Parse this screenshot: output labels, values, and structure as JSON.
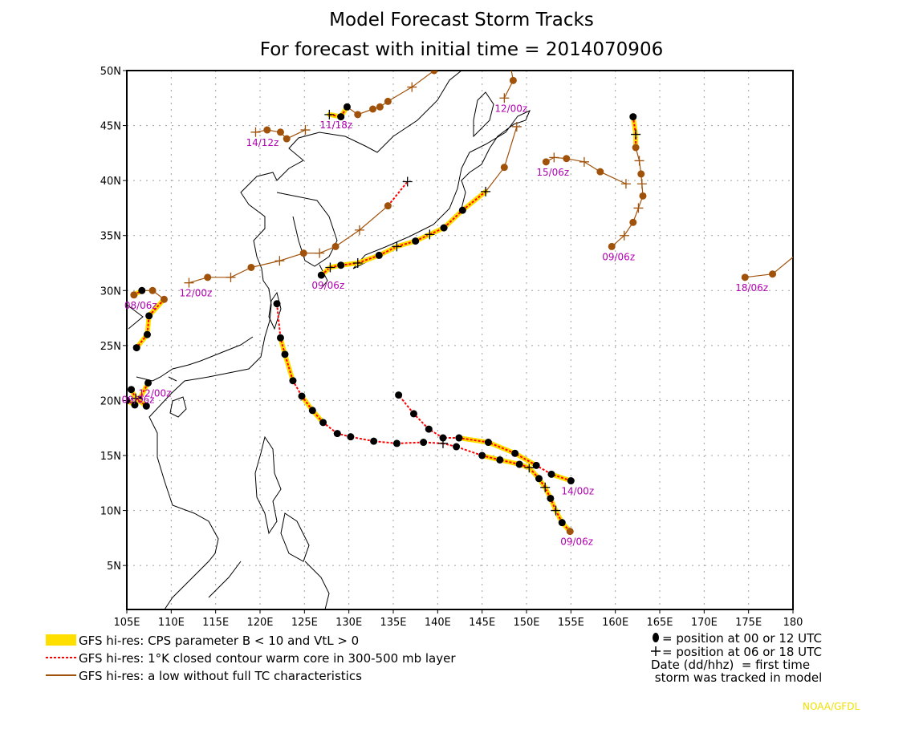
{
  "title_line1": "Model Forecast Storm Tracks",
  "title_line2": "For forecast with initial time = 2014070906",
  "credit": "NOAA/GFDL",
  "colors": {
    "cps": "#ffdf00",
    "warm": "#ff0000",
    "low": "#a0520a",
    "label": "#b000b0",
    "tropical_marker": "#000000",
    "coast": "#000000",
    "grid": "#a0a0a0"
  },
  "chart_data": {
    "type": "map-tracks",
    "lon_range": [
      105,
      180
    ],
    "lat_range": [
      1,
      50
    ],
    "grid": true,
    "lon_ticks": [
      "105E",
      "110E",
      "115E",
      "120E",
      "125E",
      "130E",
      "135E",
      "140E",
      "145E",
      "150E",
      "155E",
      "160E",
      "165E",
      "170E",
      "175E",
      "180"
    ],
    "lat_ticks": [
      "5N",
      "10N",
      "15N",
      "20N",
      "25N",
      "30N",
      "35N",
      "40N",
      "45N",
      "50N"
    ],
    "tracks": [
      {
        "label": "09/06z",
        "points": [
          [
            154.9,
            8.1,
            "dot",
            "low"
          ],
          [
            154.0,
            8.9,
            "dot",
            "cps"
          ],
          [
            153.3,
            10.0,
            "plus",
            "cps"
          ],
          [
            152.7,
            11.1,
            "dot",
            "cps"
          ],
          [
            152.1,
            12.1,
            "plus",
            "cps"
          ],
          [
            151.4,
            12.9,
            "dot",
            "cps"
          ],
          [
            150.3,
            13.9,
            "plus",
            "cps"
          ],
          [
            149.2,
            14.2,
            "dot",
            "cps"
          ],
          [
            147.0,
            14.6,
            "dot",
            "cps"
          ],
          [
            145.0,
            15.0,
            "dot",
            "cps"
          ],
          [
            142.1,
            15.8,
            "dot",
            "warm"
          ],
          [
            140.6,
            16.1,
            "plus",
            "warm"
          ],
          [
            138.4,
            16.2,
            "dot",
            "warm"
          ],
          [
            135.4,
            16.1,
            "dot",
            "warm"
          ],
          [
            132.8,
            16.3,
            "dot",
            "warm"
          ],
          [
            130.2,
            16.7,
            "dot",
            "warm"
          ],
          [
            128.7,
            17.0,
            "dot",
            "warm"
          ],
          [
            127.1,
            18.0,
            "dot",
            "warm"
          ],
          [
            125.9,
            19.1,
            "dot",
            "cps"
          ],
          [
            124.7,
            20.4,
            "dot",
            "cps"
          ],
          [
            123.7,
            21.8,
            "dot",
            "warm"
          ],
          [
            122.8,
            24.2,
            "dot",
            "cps"
          ],
          [
            122.3,
            25.7,
            "dot",
            "cps"
          ],
          [
            121.9,
            28.8,
            "dot",
            "warm"
          ]
        ]
      },
      {
        "label": "14/00z",
        "points": [
          [
            155.0,
            12.7,
            "dot",
            "cps"
          ],
          [
            152.8,
            13.3,
            "dot",
            "cps"
          ],
          [
            151.1,
            14.1,
            "dot",
            "warm"
          ],
          [
            148.7,
            15.2,
            "dot",
            "cps"
          ],
          [
            145.7,
            16.2,
            "dot",
            "cps"
          ],
          [
            142.4,
            16.6,
            "dot",
            "cps"
          ],
          [
            140.6,
            16.6,
            "dot",
            "warm"
          ],
          [
            139.0,
            17.4,
            "dot",
            "warm"
          ],
          [
            137.3,
            18.8,
            "dot",
            "warm"
          ],
          [
            135.6,
            20.5,
            "dot",
            "warm"
          ]
        ]
      },
      {
        "label": "09/06z",
        "points": [
          [
            126.9,
            31.4,
            "dot",
            "cps"
          ],
          [
            127.9,
            32.1,
            "plus",
            "cps"
          ],
          [
            129.1,
            32.3,
            "dot",
            "cps"
          ],
          [
            131.0,
            32.5,
            "plus",
            "cps"
          ],
          [
            133.4,
            33.2,
            "dot",
            "cps"
          ],
          [
            135.4,
            34.0,
            "plus",
            "cps"
          ],
          [
            137.5,
            34.5,
            "dot",
            "cps"
          ],
          [
            139.1,
            35.1,
            "plus",
            "cps"
          ],
          [
            140.7,
            35.7,
            "dot",
            "cps"
          ],
          [
            142.8,
            37.3,
            "dot",
            "cps"
          ],
          [
            145.4,
            39.0,
            "plus",
            "cps"
          ],
          [
            147.5,
            41.2,
            "dot",
            "low"
          ],
          [
            148.9,
            44.9,
            "plus",
            "low"
          ]
        ]
      },
      {
        "label": "12/00z",
        "points": [
          [
            112.0,
            30.7,
            "plus",
            "low"
          ],
          [
            114.1,
            31.2,
            "dot",
            "low"
          ],
          [
            116.7,
            31.2,
            "plus",
            "low"
          ],
          [
            119.0,
            32.1,
            "dot",
            "low"
          ],
          [
            122.2,
            32.7,
            "plus",
            "low"
          ],
          [
            124.9,
            33.4,
            "dot",
            "low"
          ],
          [
            126.7,
            33.4,
            "plus",
            "low"
          ],
          [
            128.5,
            34.0,
            "dot",
            "low"
          ],
          [
            131.2,
            35.5,
            "plus",
            "low"
          ],
          [
            134.4,
            37.7,
            "dot",
            "low"
          ],
          [
            136.6,
            39.9,
            "plus",
            "warm"
          ]
        ]
      },
      {
        "label": "12/00z",
        "points": [
          [
            147.5,
            47.5,
            "plus",
            "low"
          ],
          [
            148.5,
            49.1,
            "dot",
            "low"
          ],
          [
            148.0,
            51.3,
            "plus",
            "low"
          ]
        ]
      },
      {
        "label": "11/18z",
        "points": [
          [
            127.8,
            46.0,
            "plus",
            "cps"
          ],
          [
            129.1,
            45.8,
            "dot",
            "cps"
          ],
          [
            129.8,
            46.7,
            "dot",
            "cps"
          ],
          [
            131.0,
            46.0,
            "dot",
            "low"
          ],
          [
            132.7,
            46.5,
            "dot",
            "low"
          ],
          [
            133.5,
            46.7,
            "dot",
            "low"
          ],
          [
            134.4,
            47.2,
            "dot",
            "low"
          ],
          [
            137.1,
            48.5,
            "plus",
            "low"
          ],
          [
            139.6,
            50.0,
            "dot",
            "low"
          ],
          [
            142.2,
            50.7,
            "plus",
            "low"
          ]
        ]
      },
      {
        "label": "14/12z",
        "points": [
          [
            119.5,
            44.4,
            "plus",
            "low"
          ],
          [
            120.8,
            44.6,
            "dot",
            "low"
          ],
          [
            122.3,
            44.4,
            "dot",
            "low"
          ],
          [
            123.0,
            43.8,
            "dot",
            "low"
          ],
          [
            125.1,
            44.6,
            "plus",
            "low"
          ]
        ]
      },
      {
        "label": "15/06z",
        "points": [
          [
            152.2,
            41.7,
            "dot",
            "low"
          ],
          [
            153.1,
            42.1,
            "plus",
            "low"
          ],
          [
            154.5,
            42.0,
            "dot",
            "low"
          ],
          [
            156.5,
            41.7,
            "plus",
            "low"
          ],
          [
            158.3,
            40.8,
            "dot",
            "low"
          ],
          [
            161.2,
            39.7,
            "plus",
            "low"
          ]
        ]
      },
      {
        "label": "09/06z",
        "points": [
          [
            159.6,
            34.0,
            "dot",
            "low"
          ],
          [
            161.0,
            35.0,
            "plus",
            "low"
          ],
          [
            162.0,
            36.2,
            "dot",
            "low"
          ],
          [
            162.6,
            37.5,
            "plus",
            "low"
          ],
          [
            163.1,
            38.6,
            "dot",
            "low"
          ],
          [
            163.0,
            39.7,
            "plus",
            "low"
          ],
          [
            162.9,
            40.6,
            "dot",
            "low"
          ],
          [
            162.7,
            41.8,
            "plus",
            "low"
          ],
          [
            162.3,
            43.0,
            "dot",
            "low"
          ],
          [
            162.3,
            44.2,
            "plus",
            "cps"
          ],
          [
            162.0,
            45.8,
            "dot",
            "cps"
          ]
        ]
      },
      {
        "label": "18/06z",
        "points": [
          [
            174.6,
            31.2,
            "dot",
            "low"
          ],
          [
            177.7,
            31.5,
            "dot",
            "low"
          ],
          [
            181.3,
            33.9,
            "dot",
            "low"
          ]
        ]
      },
      {
        "label": "08/06z",
        "points": [
          [
            105.8,
            29.6,
            "dot",
            "low"
          ],
          [
            106.7,
            30.0,
            "dot",
            "cps"
          ],
          [
            107.9,
            30.0,
            "dot",
            "low"
          ],
          [
            109.2,
            29.2,
            "dot",
            "low"
          ],
          [
            107.5,
            27.7,
            "dot",
            "cps"
          ],
          [
            107.3,
            26.0,
            "dot",
            "cps"
          ],
          [
            106.1,
            24.8,
            "dot",
            "cps"
          ]
        ]
      },
      {
        "label": "12/00z",
        "points": [
          [
            107.4,
            21.6,
            "dot",
            "cps"
          ],
          [
            106.4,
            20.1,
            "dot",
            "cps"
          ],
          [
            105.9,
            19.6,
            "dot",
            "cps"
          ],
          [
            105.0,
            20.0,
            "dot",
            "cps"
          ]
        ]
      },
      {
        "label": "09/06z",
        "points": [
          [
            105.5,
            21.0,
            "dot",
            "cps"
          ],
          [
            106.0,
            20.2,
            "plus",
            "cps"
          ],
          [
            107.2,
            19.5,
            "dot",
            "cps"
          ]
        ]
      }
    ]
  },
  "legend": {
    "items": [
      {
        "style": "cps",
        "text": "GFS hi-res: CPS parameter B < 10 and VtL > 0"
      },
      {
        "style": "warm",
        "text": "GFS hi-res: 1°K closed contour warm core in 300-500 mb layer"
      },
      {
        "style": "low",
        "text": "GFS hi-res: a low without full TC characteristics"
      }
    ],
    "key": [
      {
        "icon": "dot",
        "text": "= position at 00 or 12 UTC"
      },
      {
        "icon": "plus",
        "text": "= position at 06 or 18 UTC"
      },
      {
        "icon": "",
        "text": "Date (dd/hhz)  = first time"
      },
      {
        "icon": "",
        "text": " storm was tracked in model"
      }
    ]
  }
}
